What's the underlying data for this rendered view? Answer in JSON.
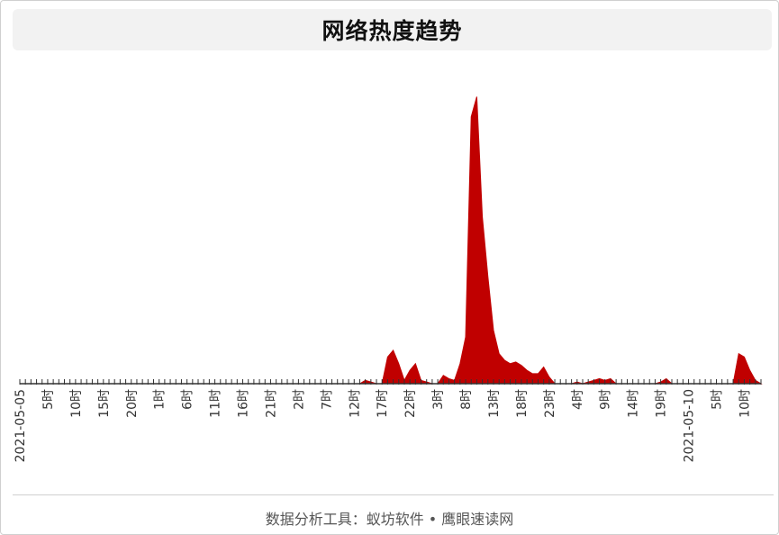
{
  "title": "网络热度趋势",
  "footer": "数据分析工具：蚁坊软件 • 鹰眼速读网",
  "colors": {
    "area": "#c00000",
    "axis": "#333333"
  },
  "chart_data": {
    "type": "area",
    "title": "网络热度趋势",
    "x_labels": [
      "2021-05-05",
      "5时",
      "10时",
      "15时",
      "20时",
      "1时",
      "6时",
      "11时",
      "16时",
      "21时",
      "2时",
      "7时",
      "12时",
      "17时",
      "22时",
      "3时",
      "8时",
      "13时",
      "18时",
      "23时",
      "4时",
      "9时",
      "14时",
      "19时",
      "2021-05-10",
      "5时",
      "10时"
    ],
    "hours_per_label": 5,
    "series": [
      {
        "values": [
          0,
          0,
          0,
          0,
          0,
          0,
          0,
          0,
          0,
          0,
          0,
          0,
          0,
          0,
          0,
          0,
          0,
          0,
          0,
          0,
          0,
          0,
          0,
          0,
          0,
          0,
          0,
          0,
          0,
          0,
          0,
          0,
          0,
          0,
          0,
          0,
          0,
          0,
          0,
          0,
          0,
          0,
          0,
          0,
          0,
          0,
          0,
          0,
          0,
          0,
          0,
          0,
          0,
          0,
          0,
          0,
          0,
          0,
          0,
          0,
          0,
          0,
          1,
          0.5,
          0,
          0,
          8,
          10,
          6,
          1,
          4,
          6,
          1,
          0.5,
          0,
          0,
          2.5,
          1.5,
          1,
          6,
          14,
          80,
          86,
          50,
          32,
          16,
          9,
          7,
          6,
          6.5,
          5.5,
          4,
          3,
          3,
          5,
          2,
          0,
          0,
          0,
          0,
          0.5,
          0,
          0.5,
          1,
          1.5,
          1,
          1.5,
          0,
          0,
          0,
          0,
          0,
          0,
          0,
          0,
          0.5,
          1.5,
          0,
          0,
          0,
          0,
          0,
          0,
          0,
          0,
          0,
          0,
          0,
          0,
          9,
          8,
          4,
          1,
          0
        ]
      }
    ],
    "ylim": [
      0,
      88
    ],
    "grid": false
  }
}
